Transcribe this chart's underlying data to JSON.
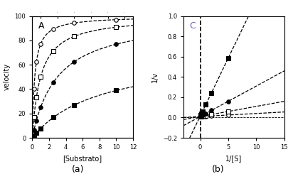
{
  "panel_a_label": "A",
  "panel_b_label": "C",
  "xlabel_a": "[Substrato]",
  "ylabel_a": "velocity",
  "xlabel_b": "1/[S]",
  "ylabel_b": "1/v",
  "caption_a": "(a)",
  "caption_b": "(b)",
  "xlim_a": [
    0,
    12
  ],
  "ylim_a": [
    0,
    100
  ],
  "xlim_b": [
    -3,
    15
  ],
  "ylim_b": [
    -0.2,
    1.0
  ],
  "curves": [
    {
      "Vmax": 100,
      "Km": 0.3,
      "marker": "o",
      "filled": false
    },
    {
      "Vmax": 100,
      "Km": 1.0,
      "marker": "s",
      "filled": false
    },
    {
      "Vmax": 100,
      "Km": 3.0,
      "marker": "o",
      "filled": true
    },
    {
      "Vmax": 70,
      "Km": 8.0,
      "marker": "s",
      "filled": true
    }
  ],
  "s_points": [
    0.2,
    0.5,
    1.0,
    2.5,
    5.0,
    10.0
  ],
  "background": "#ffffff"
}
